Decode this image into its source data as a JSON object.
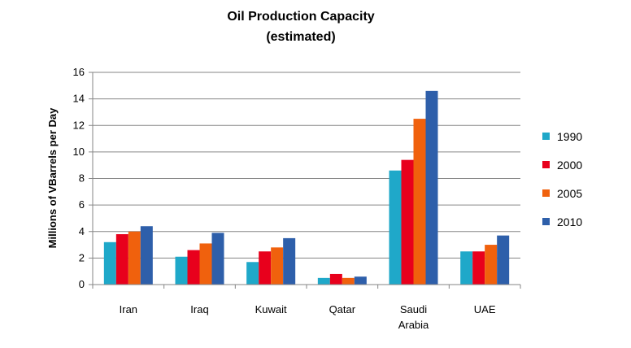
{
  "chart_data": {
    "type": "bar",
    "title": "Oil Production Capacity",
    "subtitle": "(estimated)",
    "xlabel": "",
    "ylabel": "Millions of VBarrels per Day",
    "ylim": [
      0,
      16
    ],
    "yticks": [
      0,
      2,
      4,
      6,
      8,
      10,
      12,
      14,
      16
    ],
    "grid": true,
    "legend_position": "right",
    "categories": [
      [
        "Iran"
      ],
      [
        "Iraq"
      ],
      [
        "Kuwait"
      ],
      [
        "Qatar"
      ],
      [
        "Saudi",
        "Arabia"
      ],
      [
        "UAE"
      ]
    ],
    "series": [
      {
        "name": "1990",
        "color": "#1fa8c9",
        "values": [
          3.2,
          2.1,
          1.7,
          0.5,
          8.6,
          2.5
        ]
      },
      {
        "name": "2000",
        "color": "#e8001c",
        "values": [
          3.8,
          2.6,
          2.5,
          0.8,
          9.4,
          2.5
        ]
      },
      {
        "name": "2005",
        "color": "#f0610d",
        "values": [
          4.0,
          3.1,
          2.8,
          0.5,
          12.5,
          3.0
        ]
      },
      {
        "name": "2010",
        "color": "#2e5faa",
        "values": [
          4.4,
          3.9,
          3.5,
          0.6,
          14.6,
          3.7
        ]
      }
    ]
  }
}
